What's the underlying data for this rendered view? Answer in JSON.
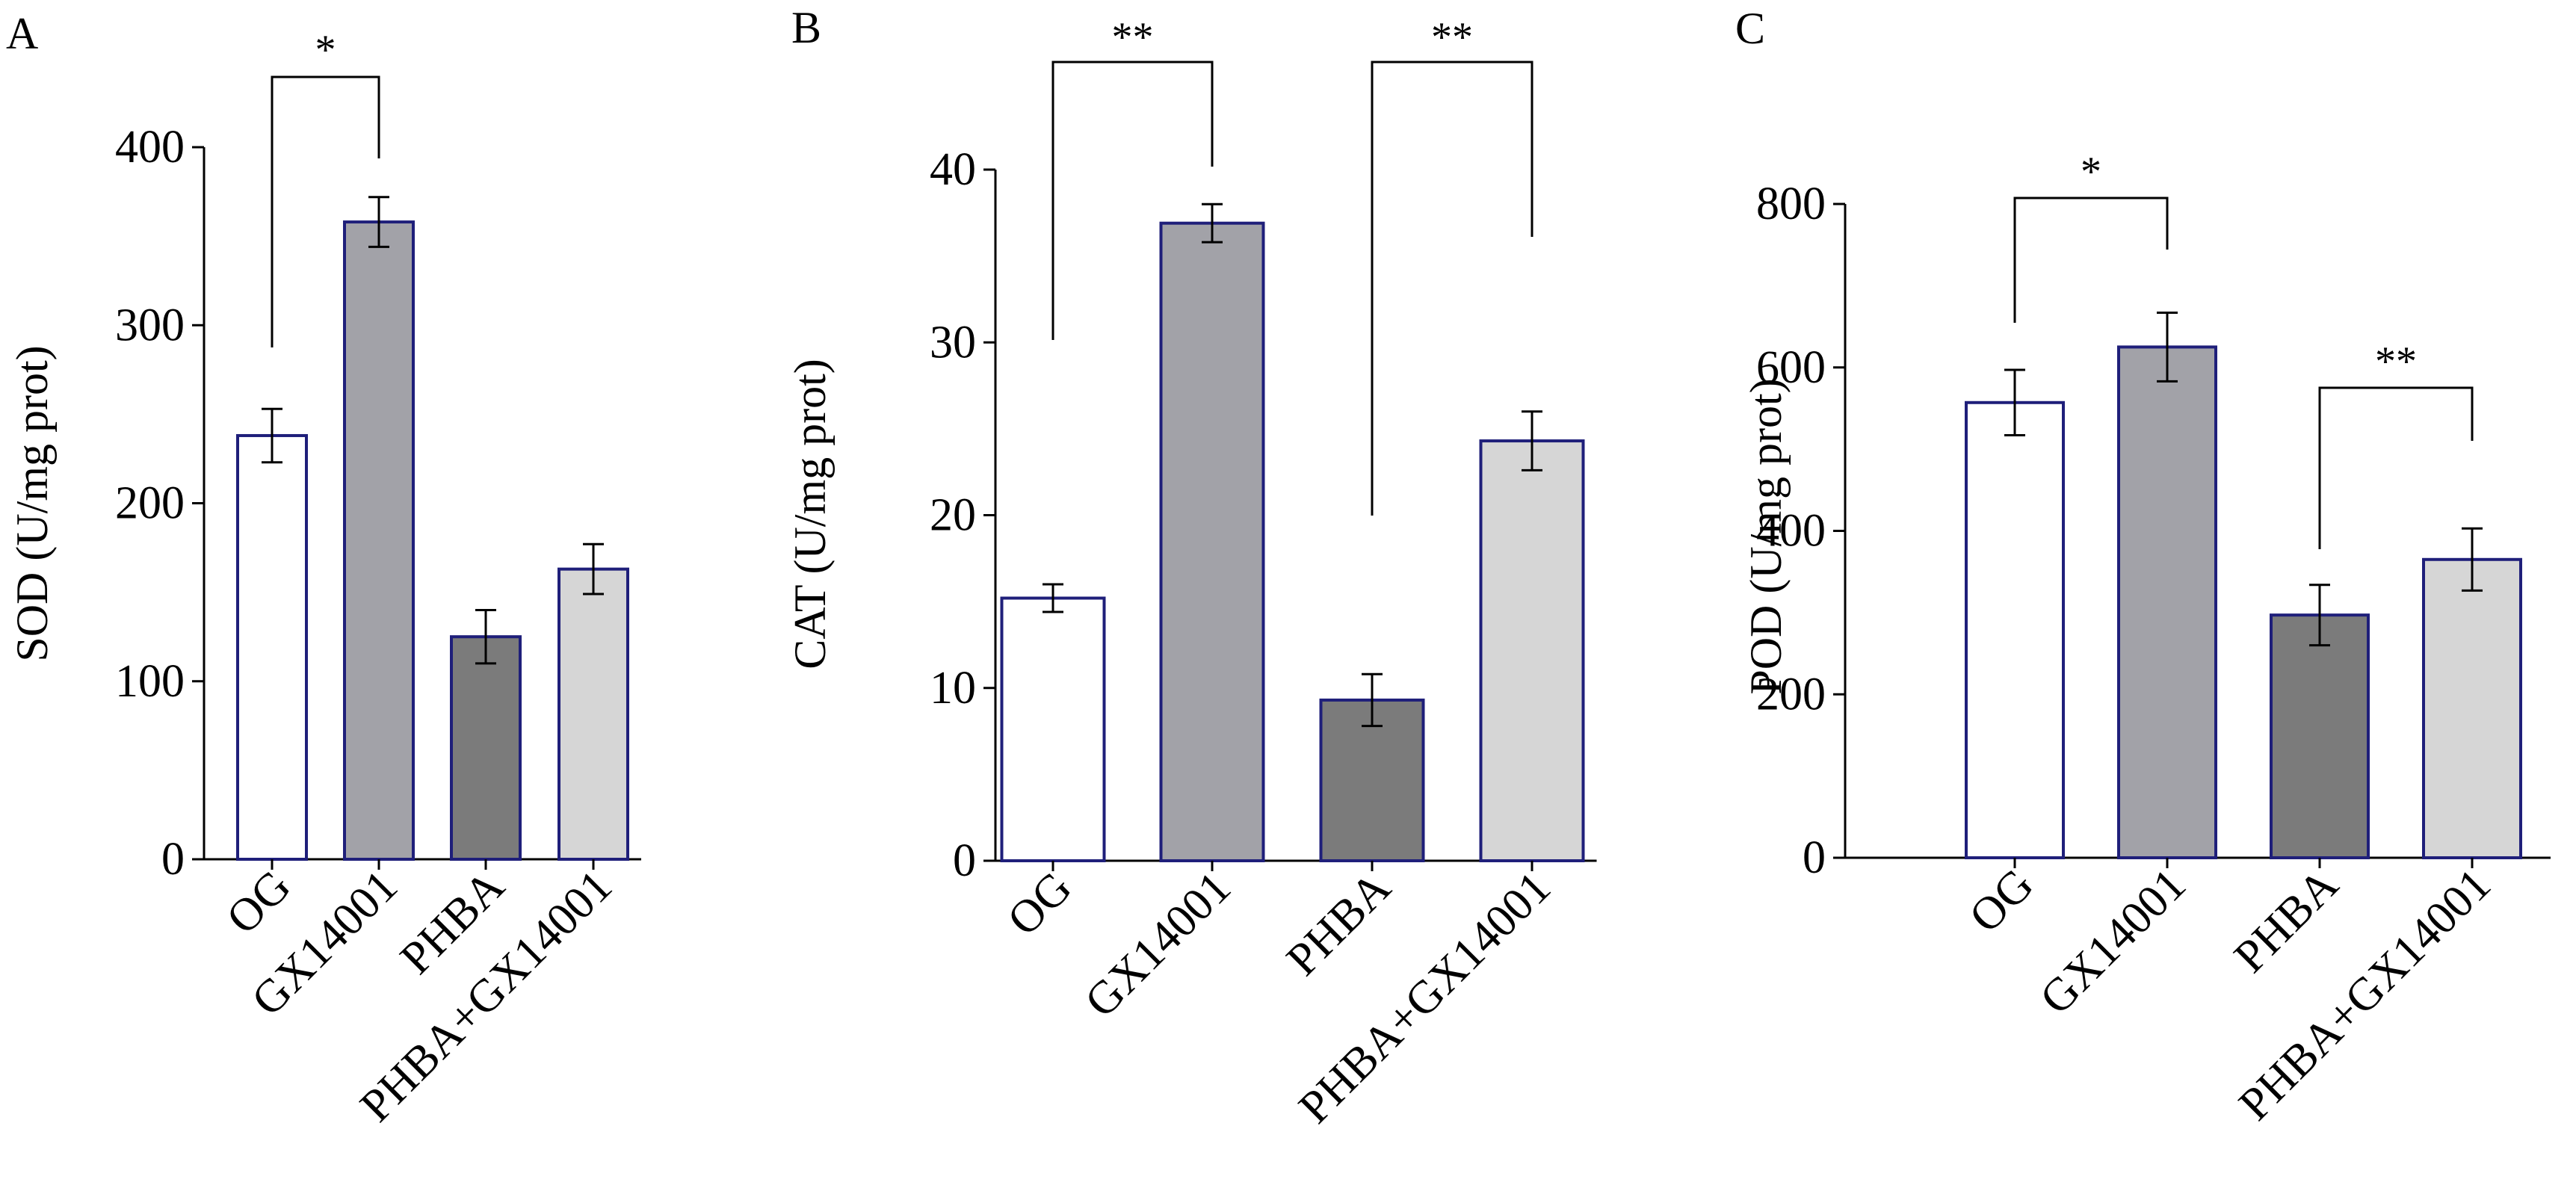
{
  "figure": {
    "background": "#ffffff",
    "axis_color": "#000000",
    "bar_edge_color": "#1f1f7a"
  },
  "chart_data": [
    {
      "panel_label": "A",
      "type": "bar",
      "categories": [
        "OG",
        "GX14001",
        "PHBA",
        "PHBA+GX14001"
      ],
      "values": [
        238,
        358,
        125,
        163
      ],
      "errors": [
        15,
        14,
        15,
        14
      ],
      "ylabel": "SOD (U/mg prot)",
      "ylim": [
        0,
        400
      ],
      "yticks": [
        "0",
        "100",
        "200",
        "300",
        "400"
      ],
      "colors": [
        "#ffffff",
        "#a2a2a8",
        "#7b7b7b",
        "#d6d6d6"
      ],
      "significance": [
        {
          "from": 0,
          "to": 1,
          "label": "*"
        }
      ]
    },
    {
      "panel_label": "B",
      "type": "bar",
      "categories": [
        "OG",
        "GX14001",
        "PHBA",
        "PHBA+GX14001"
      ],
      "values": [
        15.2,
        36.9,
        9.3,
        24.3
      ],
      "errors": [
        0.8,
        1.1,
        1.5,
        1.7
      ],
      "ylabel": "CAT (U/mg prot)",
      "ylim": [
        0,
        40
      ],
      "yticks": [
        "0",
        "10",
        "20",
        "30",
        "40"
      ],
      "colors": [
        "#ffffff",
        "#a2a2a8",
        "#7b7b7b",
        "#d6d6d6"
      ],
      "significance": [
        {
          "from": 0,
          "to": 1,
          "label": "**"
        },
        {
          "from": 2,
          "to": 3,
          "label": "**"
        }
      ]
    },
    {
      "panel_label": "C",
      "type": "bar",
      "categories": [
        "OG",
        "GX14001",
        "PHBA",
        "PHBA+GX14001"
      ],
      "values": [
        557,
        625,
        297,
        365
      ],
      "errors": [
        40,
        42,
        37,
        38
      ],
      "ylabel": "POD (U/mg prot)",
      "ylim": [
        0,
        800
      ],
      "yticks": [
        "0",
        "200",
        "400",
        "600",
        "800"
      ],
      "colors": [
        "#ffffff",
        "#a2a2a8",
        "#7b7b7b",
        "#d6d6d6"
      ],
      "significance": [
        {
          "from": 0,
          "to": 1,
          "label": "*"
        },
        {
          "from": 2,
          "to": 3,
          "label": "**"
        }
      ]
    }
  ]
}
